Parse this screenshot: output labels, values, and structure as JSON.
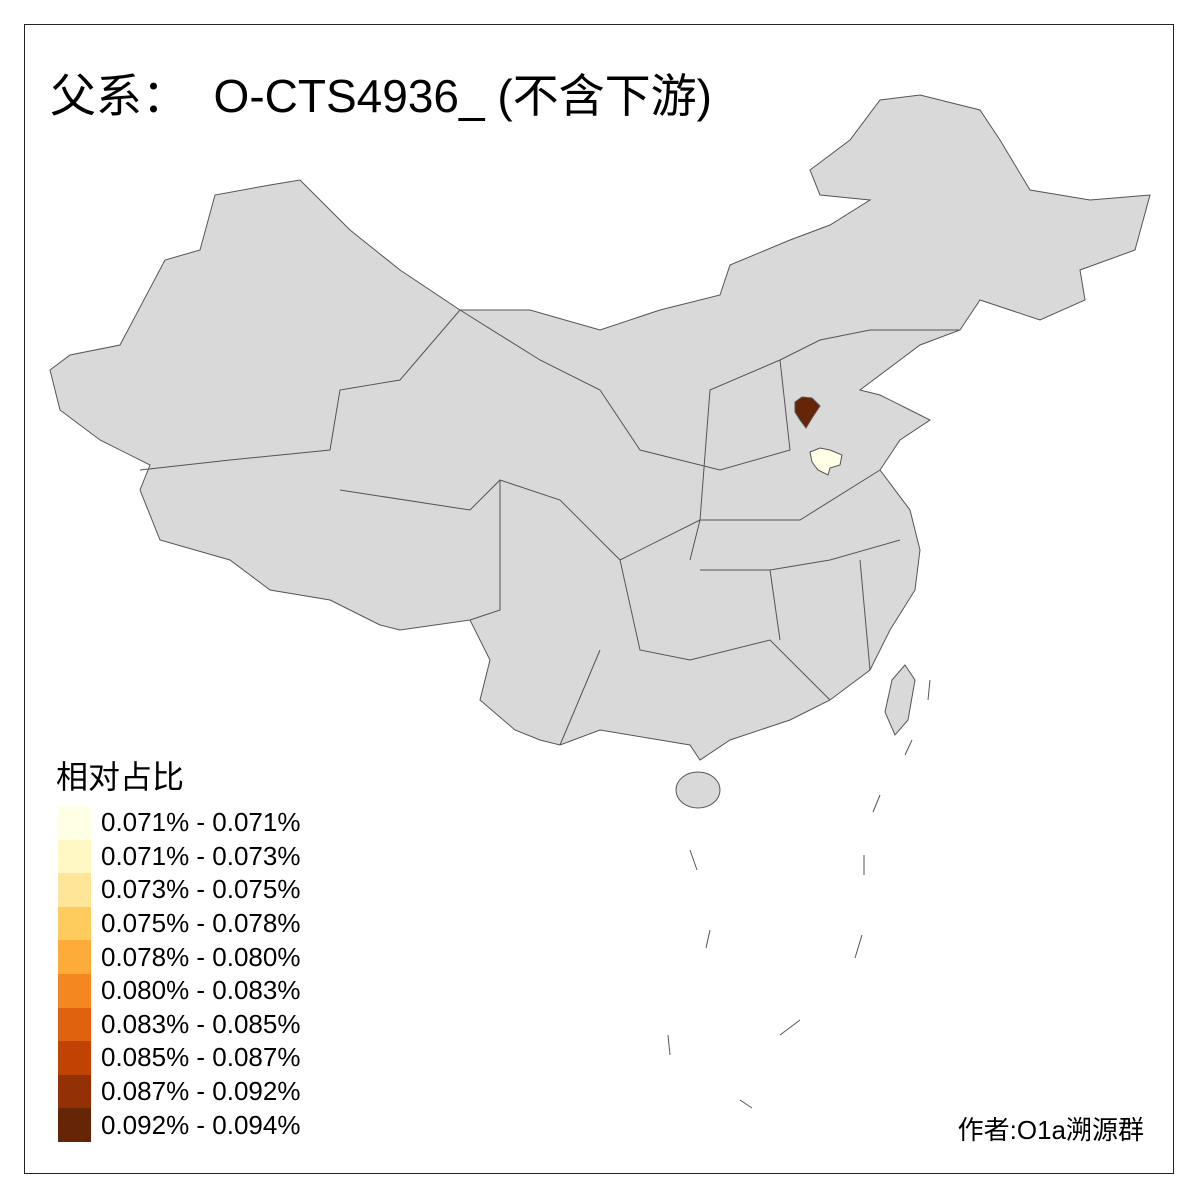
{
  "title": "父系：  O-CTS4936_ (不含下游)",
  "legend": {
    "title": "相对占比",
    "items": [
      {
        "label": "0.071% - 0.071%",
        "color": "#FFFFE5"
      },
      {
        "label": "0.071% - 0.073%",
        "color": "#FFF7C4"
      },
      {
        "label": "0.073% - 0.075%",
        "color": "#FEE598"
      },
      {
        "label": "0.075% - 0.078%",
        "color": "#FECC5C"
      },
      {
        "label": "0.078% - 0.080%",
        "color": "#FDAB39"
      },
      {
        "label": "0.080% - 0.083%",
        "color": "#F4871F"
      },
      {
        "label": "0.083% - 0.085%",
        "color": "#E0620F"
      },
      {
        "label": "0.085% - 0.087%",
        "color": "#BF4404"
      },
      {
        "label": "0.087% - 0.092%",
        "color": "#933104"
      },
      {
        "label": "0.092% - 0.094%",
        "color": "#662506"
      }
    ]
  },
  "map": {
    "base_color": "#D9D9D9",
    "border_color": "#555555",
    "highlighted": [
      {
        "color": "#662506"
      },
      {
        "color": "#FFFFE5"
      }
    ]
  },
  "author": "作者:O1a溯源群"
}
